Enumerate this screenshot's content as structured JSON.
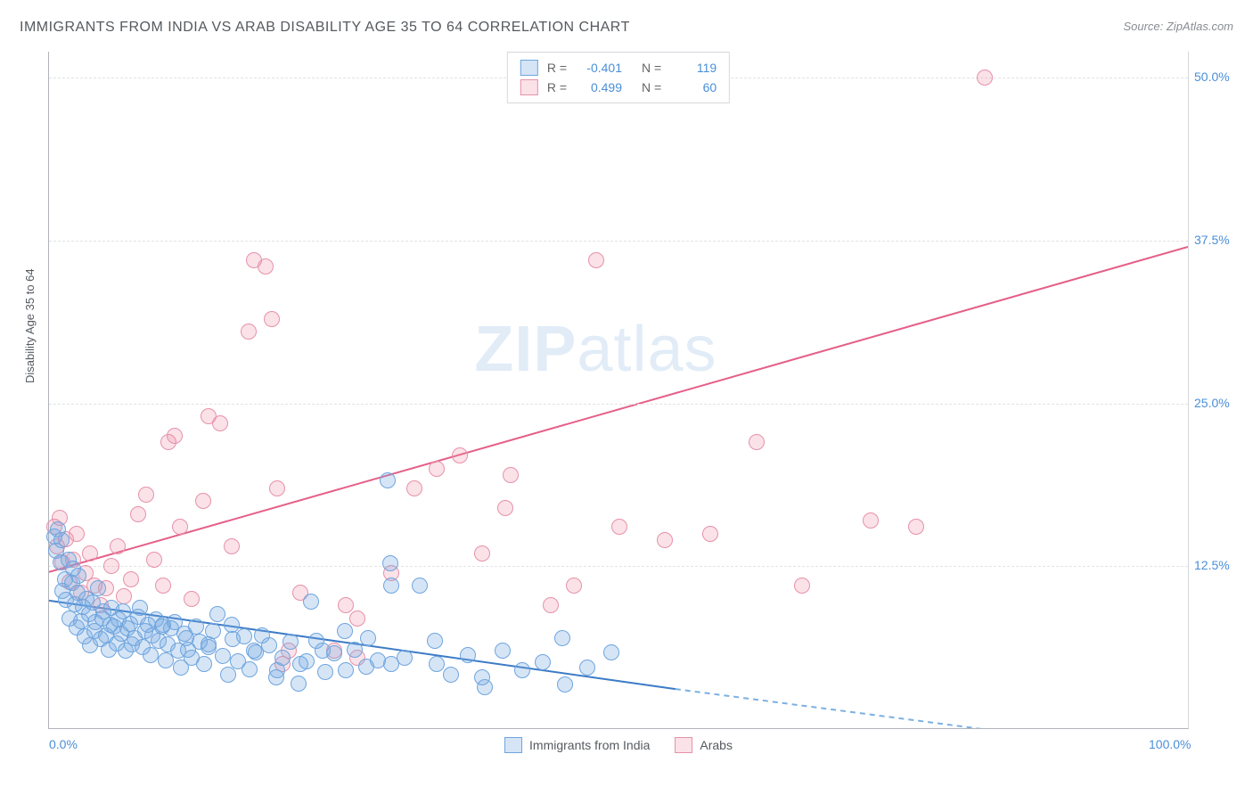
{
  "title": "IMMIGRANTS FROM INDIA VS ARAB DISABILITY AGE 35 TO 64 CORRELATION CHART",
  "source": "Source: ZipAtlas.com",
  "y_axis_label": "Disability Age 35 to 64",
  "watermark_bold": "ZIP",
  "watermark_light": "atlas",
  "chart": {
    "type": "scatter",
    "xlim": [
      0,
      100
    ],
    "ylim": [
      0,
      52
    ],
    "x_ticks": [
      {
        "v": 0,
        "label": "0.0%"
      },
      {
        "v": 100,
        "label": "100.0%"
      }
    ],
    "y_ticks": [
      {
        "v": 12.5,
        "label": "12.5%"
      },
      {
        "v": 25.0,
        "label": "25.0%"
      },
      {
        "v": 37.5,
        "label": "37.5%"
      },
      {
        "v": 50.0,
        "label": "50.0%"
      }
    ],
    "grid_color": "#e1e3e7",
    "background": "#ffffff",
    "series": {
      "india": {
        "label": "Immigrants from India",
        "fill": "rgba(120,170,225,0.30)",
        "stroke": "#6ea5de",
        "line_color": "#3c7bc6",
        "line_dash_color": "#7bb0e2",
        "R": "-0.401",
        "N": "119",
        "trend": {
          "x1": 0,
          "y1": 9.8,
          "x2_solid": 55,
          "y2_solid": 3.0,
          "x2": 90,
          "y2": -1.0
        },
        "point_radius": 9,
        "points": [
          [
            0.5,
            14.8
          ],
          [
            0.6,
            13.7
          ],
          [
            0.8,
            15.3
          ],
          [
            1.0,
            12.8
          ],
          [
            1.1,
            14.5
          ],
          [
            1.2,
            10.6
          ],
          [
            1.4,
            11.5
          ],
          [
            1.5,
            9.9
          ],
          [
            1.7,
            13.0
          ],
          [
            1.8,
            8.5
          ],
          [
            2.0,
            11.2
          ],
          [
            2.1,
            12.3
          ],
          [
            2.3,
            9.6
          ],
          [
            2.4,
            7.8
          ],
          [
            2.5,
            10.5
          ],
          [
            2.6,
            11.8
          ],
          [
            2.8,
            8.3
          ],
          [
            3.0,
            9.4
          ],
          [
            3.1,
            7.1
          ],
          [
            3.3,
            10.0
          ],
          [
            3.5,
            8.8
          ],
          [
            3.6,
            6.4
          ],
          [
            3.8,
            9.7
          ],
          [
            4.0,
            7.5
          ],
          [
            4.1,
            8.2
          ],
          [
            4.3,
            10.8
          ],
          [
            4.5,
            6.9
          ],
          [
            4.7,
            8.5
          ],
          [
            4.8,
            9.0
          ],
          [
            5.0,
            7.2
          ],
          [
            5.2,
            6.1
          ],
          [
            5.4,
            8.0
          ],
          [
            5.5,
            9.3
          ],
          [
            5.7,
            7.9
          ],
          [
            5.9,
            6.6
          ],
          [
            6.1,
            8.4
          ],
          [
            6.3,
            7.3
          ],
          [
            6.5,
            9.0
          ],
          [
            6.7,
            6.0
          ],
          [
            6.9,
            7.7
          ],
          [
            7.1,
            8.1
          ],
          [
            7.3,
            6.5
          ],
          [
            7.5,
            7.0
          ],
          [
            7.8,
            8.6
          ],
          [
            8.0,
            9.3
          ],
          [
            8.2,
            6.3
          ],
          [
            8.4,
            7.5
          ],
          [
            8.7,
            8.0
          ],
          [
            8.9,
            5.7
          ],
          [
            9.1,
            7.2
          ],
          [
            9.4,
            8.4
          ],
          [
            9.6,
            6.8
          ],
          [
            9.9,
            7.9
          ],
          [
            10.2,
            5.3
          ],
          [
            10.4,
            6.5
          ],
          [
            10.7,
            7.7
          ],
          [
            11.0,
            8.2
          ],
          [
            11.3,
            6.0
          ],
          [
            11.6,
            4.7
          ],
          [
            11.9,
            7.3
          ],
          [
            12.2,
            6.1
          ],
          [
            12.5,
            5.5
          ],
          [
            12.9,
            7.9
          ],
          [
            13.2,
            6.7
          ],
          [
            13.6,
            5.0
          ],
          [
            14.0,
            6.3
          ],
          [
            14.4,
            7.5
          ],
          [
            14.8,
            8.8
          ],
          [
            15.2,
            5.6
          ],
          [
            15.7,
            4.2
          ],
          [
            16.1,
            6.9
          ],
          [
            16.6,
            5.2
          ],
          [
            17.1,
            7.1
          ],
          [
            17.6,
            4.6
          ],
          [
            18.1,
            5.9
          ],
          [
            18.7,
            7.2
          ],
          [
            19.3,
            6.4
          ],
          [
            19.9,
            4.0
          ],
          [
            20.5,
            5.5
          ],
          [
            21.2,
            6.7
          ],
          [
            21.9,
            3.5
          ],
          [
            22.6,
            5.2
          ],
          [
            23.4,
            6.8
          ],
          [
            24.2,
            4.4
          ],
          [
            25.0,
            5.8
          ],
          [
            25.9,
            7.5
          ],
          [
            26.8,
            6.1
          ],
          [
            27.8,
            4.8
          ],
          [
            28.8,
            5.3
          ],
          [
            29.7,
            19.1
          ],
          [
            29.9,
            12.7
          ],
          [
            30.0,
            11.0
          ],
          [
            31.2,
            5.5
          ],
          [
            32.5,
            11.0
          ],
          [
            33.8,
            6.8
          ],
          [
            35.2,
            4.2
          ],
          [
            36.7,
            5.7
          ],
          [
            38.2,
            3.2
          ],
          [
            39.8,
            6.0
          ],
          [
            41.5,
            4.5
          ],
          [
            43.3,
            5.1
          ],
          [
            45.2,
            3.4
          ],
          [
            45.0,
            7.0
          ],
          [
            47.2,
            4.7
          ],
          [
            49.3,
            5.9
          ],
          [
            23.0,
            9.8
          ],
          [
            10.0,
            8.0
          ],
          [
            12.0,
            7.0
          ],
          [
            14.0,
            6.5
          ],
          [
            16.0,
            8.0
          ],
          [
            18.0,
            6.0
          ],
          [
            20.0,
            4.5
          ],
          [
            22.0,
            5.0
          ],
          [
            24.0,
            6.0
          ],
          [
            26.0,
            4.5
          ],
          [
            28.0,
            7.0
          ],
          [
            30.0,
            5.0
          ],
          [
            34.0,
            5.0
          ],
          [
            38.0,
            4.0
          ]
        ]
      },
      "arabs": {
        "label": "Arabs",
        "fill": "rgba(235,140,165,0.25)",
        "stroke": "#e791a9",
        "line_color": "#e55f87",
        "R": "0.499",
        "N": "60",
        "trend": {
          "x1": 0,
          "y1": 12.0,
          "x2": 100,
          "y2": 37.0
        },
        "point_radius": 9,
        "points": [
          [
            0.5,
            15.5
          ],
          [
            0.7,
            14.0
          ],
          [
            0.9,
            16.2
          ],
          [
            1.2,
            12.8
          ],
          [
            1.5,
            14.6
          ],
          [
            1.8,
            11.3
          ],
          [
            2.1,
            13.0
          ],
          [
            2.4,
            15.0
          ],
          [
            2.8,
            10.5
          ],
          [
            3.2,
            12.0
          ],
          [
            3.6,
            13.5
          ],
          [
            4.0,
            11.0
          ],
          [
            4.5,
            9.5
          ],
          [
            5.0,
            10.8
          ],
          [
            5.5,
            12.5
          ],
          [
            6.0,
            14.0
          ],
          [
            6.6,
            10.2
          ],
          [
            7.2,
            11.5
          ],
          [
            7.8,
            16.5
          ],
          [
            8.5,
            18.0
          ],
          [
            9.2,
            13.0
          ],
          [
            10.0,
            11.0
          ],
          [
            10.5,
            22.0
          ],
          [
            11.0,
            22.5
          ],
          [
            11.5,
            15.5
          ],
          [
            12.5,
            10.0
          ],
          [
            13.5,
            17.5
          ],
          [
            14.0,
            24.0
          ],
          [
            15.0,
            23.5
          ],
          [
            16.0,
            14.0
          ],
          [
            17.5,
            30.5
          ],
          [
            18.0,
            36.0
          ],
          [
            19.0,
            35.5
          ],
          [
            19.5,
            31.5
          ],
          [
            20.0,
            18.5
          ],
          [
            20.5,
            5.0
          ],
          [
            21.0,
            6.0
          ],
          [
            22.0,
            10.5
          ],
          [
            25.0,
            6.0
          ],
          [
            26.0,
            9.5
          ],
          [
            27.0,
            8.5
          ],
          [
            30.0,
            12.0
          ],
          [
            32.0,
            18.5
          ],
          [
            34.0,
            20.0
          ],
          [
            36.0,
            21.0
          ],
          [
            38.0,
            13.5
          ],
          [
            40.0,
            17.0
          ],
          [
            40.5,
            19.5
          ],
          [
            44.0,
            9.5
          ],
          [
            46.0,
            11.0
          ],
          [
            48.0,
            36.0
          ],
          [
            50.0,
            15.5
          ],
          [
            54.0,
            14.5
          ],
          [
            58.0,
            15.0
          ],
          [
            62.0,
            22.0
          ],
          [
            66.0,
            11.0
          ],
          [
            72.0,
            16.0
          ],
          [
            76.0,
            15.5
          ],
          [
            82.0,
            50.0
          ],
          [
            27.0,
            5.5
          ]
        ]
      }
    }
  }
}
